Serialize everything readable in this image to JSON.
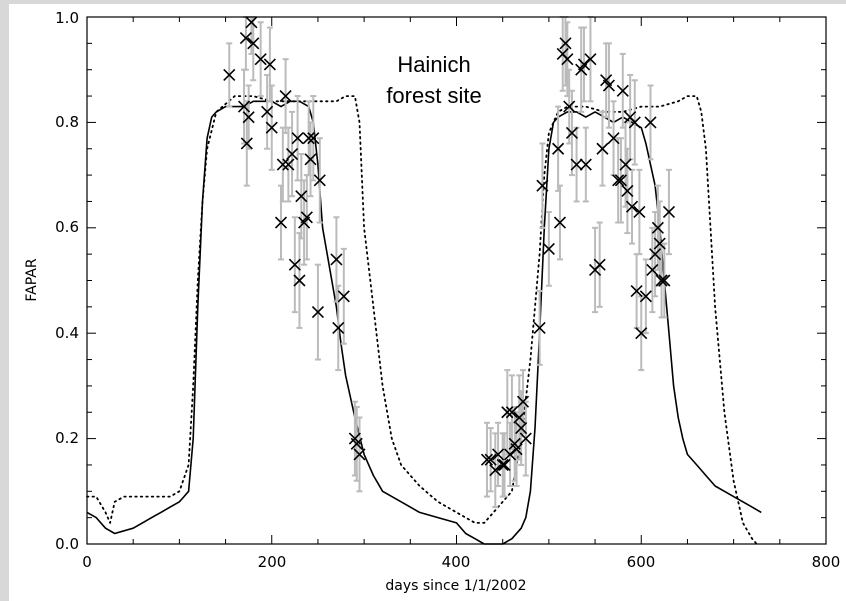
{
  "chart_data": {
    "type": "line",
    "xlabel": "days since 1/1/2002",
    "ylabel": "FAPAR",
    "xlim": [
      0,
      800
    ],
    "ylim": [
      0,
      1.0
    ],
    "xticks": [
      "0",
      "200",
      "400",
      "600",
      "800"
    ],
    "yticks": [
      "0.0",
      "0.2",
      "0.4",
      "0.6",
      "0.8",
      "1.0"
    ],
    "annotation": [
      "Hainich",
      "forest site"
    ],
    "grid": false,
    "colors": {
      "solid": "#000000",
      "dotted": "#000000",
      "markers": "#000000",
      "error_bars": "#bbbbbb"
    },
    "series": [
      {
        "style": "solid",
        "x": [
          0,
          10,
          20,
          30,
          40,
          50,
          60,
          70,
          80,
          90,
          100,
          105,
          110,
          115,
          120,
          125,
          130,
          135,
          140,
          150,
          160,
          170,
          180,
          190,
          200,
          210,
          220,
          230,
          240,
          245,
          250,
          255,
          260,
          265,
          270,
          275,
          280,
          290,
          300,
          310,
          320,
          340,
          360,
          380,
          400,
          410,
          420,
          430,
          440,
          450,
          460,
          470,
          475,
          480,
          485,
          490,
          495,
          500,
          505,
          510,
          520,
          530,
          540,
          550,
          560,
          570,
          580,
          590,
          600,
          605,
          610,
          615,
          620,
          625,
          630,
          635,
          640,
          645,
          650,
          660,
          670,
          680,
          690,
          700,
          710,
          720,
          730
        ],
        "y": [
          0.06,
          0.05,
          0.03,
          0.02,
          0.025,
          0.03,
          0.04,
          0.05,
          0.06,
          0.07,
          0.08,
          0.09,
          0.1,
          0.2,
          0.45,
          0.65,
          0.77,
          0.81,
          0.82,
          0.83,
          0.83,
          0.83,
          0.84,
          0.84,
          0.84,
          0.83,
          0.84,
          0.84,
          0.83,
          0.8,
          0.72,
          0.6,
          0.55,
          0.5,
          0.45,
          0.38,
          0.32,
          0.24,
          0.17,
          0.13,
          0.1,
          0.08,
          0.06,
          0.05,
          0.04,
          0.02,
          0.01,
          0.0,
          0.0,
          0.0,
          0.01,
          0.03,
          0.05,
          0.1,
          0.22,
          0.4,
          0.6,
          0.75,
          0.8,
          0.81,
          0.82,
          0.82,
          0.81,
          0.82,
          0.81,
          0.8,
          0.81,
          0.8,
          0.79,
          0.76,
          0.72,
          0.68,
          0.6,
          0.5,
          0.4,
          0.3,
          0.24,
          0.2,
          0.17,
          0.15,
          0.13,
          0.11,
          0.1,
          0.09,
          0.08,
          0.07,
          0.06
        ]
      },
      {
        "style": "dotted",
        "x": [
          0,
          10,
          20,
          25,
          30,
          40,
          50,
          60,
          70,
          80,
          90,
          100,
          110,
          115,
          120,
          125,
          130,
          140,
          160,
          180,
          200,
          220,
          240,
          260,
          270,
          280,
          285,
          290,
          295,
          300,
          310,
          320,
          330,
          340,
          360,
          380,
          400,
          410,
          420,
          430,
          440,
          450,
          460,
          470,
          480,
          490,
          495,
          500,
          510,
          520,
          540,
          560,
          580,
          600,
          620,
          640,
          650,
          655,
          660,
          665,
          670,
          675,
          680,
          690,
          700,
          710,
          720,
          725
        ],
        "y": [
          0.09,
          0.09,
          0.06,
          0.04,
          0.08,
          0.09,
          0.09,
          0.09,
          0.09,
          0.09,
          0.09,
          0.1,
          0.15,
          0.3,
          0.5,
          0.65,
          0.75,
          0.82,
          0.85,
          0.85,
          0.84,
          0.84,
          0.84,
          0.84,
          0.84,
          0.85,
          0.85,
          0.85,
          0.8,
          0.6,
          0.45,
          0.3,
          0.2,
          0.15,
          0.11,
          0.08,
          0.06,
          0.05,
          0.04,
          0.04,
          0.06,
          0.08,
          0.1,
          0.2,
          0.35,
          0.55,
          0.7,
          0.78,
          0.82,
          0.83,
          0.83,
          0.82,
          0.82,
          0.83,
          0.83,
          0.84,
          0.85,
          0.85,
          0.85,
          0.82,
          0.75,
          0.6,
          0.45,
          0.25,
          0.12,
          0.04,
          0.01,
          0.0
        ]
      },
      {
        "style": "markers",
        "points": [
          [
            154,
            0.89,
            0.06
          ],
          [
            170,
            0.83,
            0.07
          ],
          [
            172,
            0.96,
            0.06
          ],
          [
            173,
            0.76,
            0.08
          ],
          [
            175,
            0.81,
            0.06
          ],
          [
            178,
            0.99,
            0.06
          ],
          [
            180,
            0.95,
            0.07
          ],
          [
            188,
            0.92,
            0.07
          ],
          [
            195,
            0.82,
            0.07
          ],
          [
            198,
            0.91,
            0.07
          ],
          [
            200,
            0.79,
            0.08
          ],
          [
            210,
            0.61,
            0.07
          ],
          [
            212,
            0.72,
            0.07
          ],
          [
            215,
            0.85,
            0.07
          ],
          [
            218,
            0.72,
            0.07
          ],
          [
            222,
            0.74,
            0.08
          ],
          [
            225,
            0.53,
            0.09
          ],
          [
            228,
            0.77,
            0.08
          ],
          [
            230,
            0.5,
            0.09
          ],
          [
            232,
            0.66,
            0.08
          ],
          [
            235,
            0.61,
            0.08
          ],
          [
            238,
            0.62,
            0.08
          ],
          [
            240,
            0.77,
            0.07
          ],
          [
            242,
            0.73,
            0.07
          ],
          [
            245,
            0.77,
            0.08
          ],
          [
            250,
            0.44,
            0.09
          ],
          [
            252,
            0.69,
            0.08
          ],
          [
            270,
            0.54,
            0.08
          ],
          [
            272,
            0.41,
            0.08
          ],
          [
            278,
            0.47,
            0.09
          ],
          [
            290,
            0.2,
            0.07
          ],
          [
            292,
            0.19,
            0.07
          ],
          [
            295,
            0.17,
            0.07
          ],
          [
            433,
            0.16,
            0.07
          ],
          [
            437,
            0.16,
            0.06
          ],
          [
            442,
            0.14,
            0.07
          ],
          [
            445,
            0.17,
            0.06
          ],
          [
            450,
            0.15,
            0.06
          ],
          [
            452,
            0.15,
            0.06
          ],
          [
            455,
            0.25,
            0.08
          ],
          [
            458,
            0.17,
            0.06
          ],
          [
            460,
            0.25,
            0.07
          ],
          [
            463,
            0.19,
            0.07
          ],
          [
            465,
            0.18,
            0.07
          ],
          [
            468,
            0.24,
            0.08
          ],
          [
            470,
            0.22,
            0.07
          ],
          [
            472,
            0.27,
            0.06
          ],
          [
            475,
            0.2,
            0.07
          ],
          [
            490,
            0.41,
            0.07
          ],
          [
            493,
            0.68,
            0.08
          ],
          [
            500,
            0.56,
            0.07
          ],
          [
            510,
            0.75,
            0.08
          ],
          [
            512,
            0.61,
            0.07
          ],
          [
            515,
            0.93,
            0.07
          ],
          [
            518,
            0.95,
            0.08
          ],
          [
            520,
            0.92,
            0.07
          ],
          [
            522,
            0.83,
            0.07
          ],
          [
            525,
            0.78,
            0.08
          ],
          [
            530,
            0.72,
            0.07
          ],
          [
            535,
            0.9,
            0.08
          ],
          [
            538,
            0.91,
            0.07
          ],
          [
            540,
            0.72,
            0.07
          ],
          [
            545,
            0.92,
            0.08
          ],
          [
            550,
            0.52,
            0.08
          ],
          [
            555,
            0.53,
            0.08
          ],
          [
            558,
            0.75,
            0.07
          ],
          [
            562,
            0.88,
            0.07
          ],
          [
            565,
            0.87,
            0.08
          ],
          [
            570,
            0.77,
            0.07
          ],
          [
            575,
            0.69,
            0.08
          ],
          [
            578,
            0.69,
            0.08
          ],
          [
            580,
            0.86,
            0.07
          ],
          [
            583,
            0.72,
            0.08
          ],
          [
            585,
            0.67,
            0.08
          ],
          [
            588,
            0.81,
            0.08
          ],
          [
            590,
            0.64,
            0.07
          ],
          [
            593,
            0.8,
            0.08
          ],
          [
            595,
            0.48,
            0.07
          ],
          [
            598,
            0.63,
            0.08
          ],
          [
            600,
            0.4,
            0.07
          ],
          [
            605,
            0.47,
            0.07
          ],
          [
            610,
            0.8,
            0.07
          ],
          [
            612,
            0.52,
            0.08
          ],
          [
            615,
            0.55,
            0.08
          ],
          [
            618,
            0.6,
            0.08
          ],
          [
            620,
            0.57,
            0.08
          ],
          [
            622,
            0.5,
            0.07
          ],
          [
            625,
            0.5,
            0.07
          ],
          [
            630,
            0.63,
            0.08
          ]
        ]
      }
    ]
  }
}
